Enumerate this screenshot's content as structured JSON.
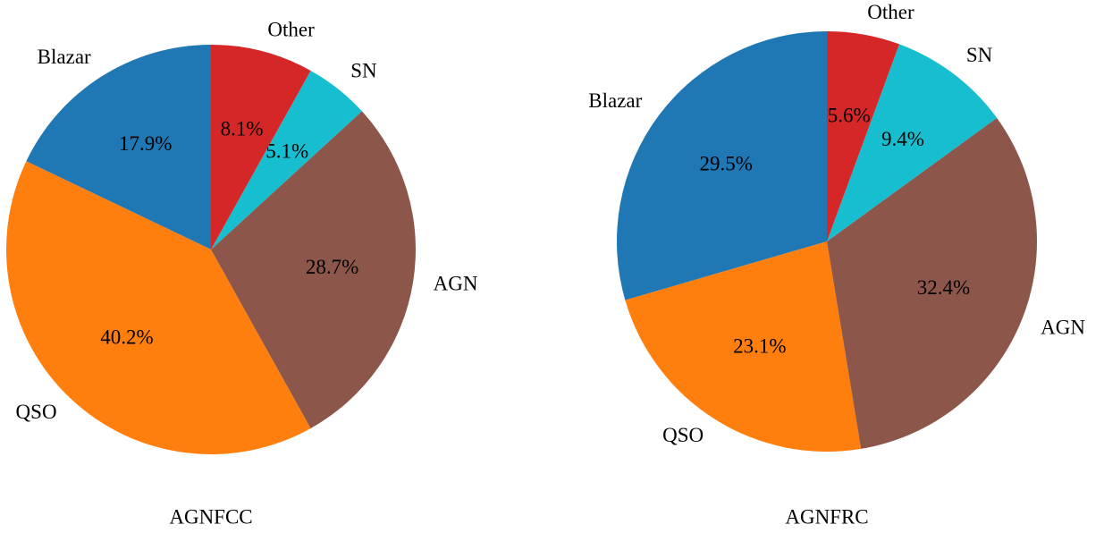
{
  "chart_data": [
    {
      "type": "pie",
      "title": "AGNFCC",
      "categories": [
        "Blazar",
        "QSO",
        "AGN",
        "SN",
        "Other"
      ],
      "values": [
        17.9,
        40.2,
        28.7,
        5.1,
        8.1
      ],
      "value_labels": [
        "17.9%",
        "40.2%",
        "28.7%",
        "5.1%",
        "8.1%"
      ],
      "colors": [
        "#1f77b4",
        "#ff7f0e",
        "#8c564b",
        "#17becf",
        "#d62728"
      ]
    },
    {
      "type": "pie",
      "title": "AGNFRC",
      "categories": [
        "Blazar",
        "QSO",
        "AGN",
        "SN",
        "Other"
      ],
      "values": [
        29.5,
        23.1,
        32.4,
        9.4,
        5.6
      ],
      "value_labels": [
        "29.5%",
        "23.1%",
        "32.4%",
        "9.4%",
        "5.6%"
      ],
      "colors": [
        "#1f77b4",
        "#ff7f0e",
        "#8c564b",
        "#17becf",
        "#d62728"
      ]
    }
  ]
}
